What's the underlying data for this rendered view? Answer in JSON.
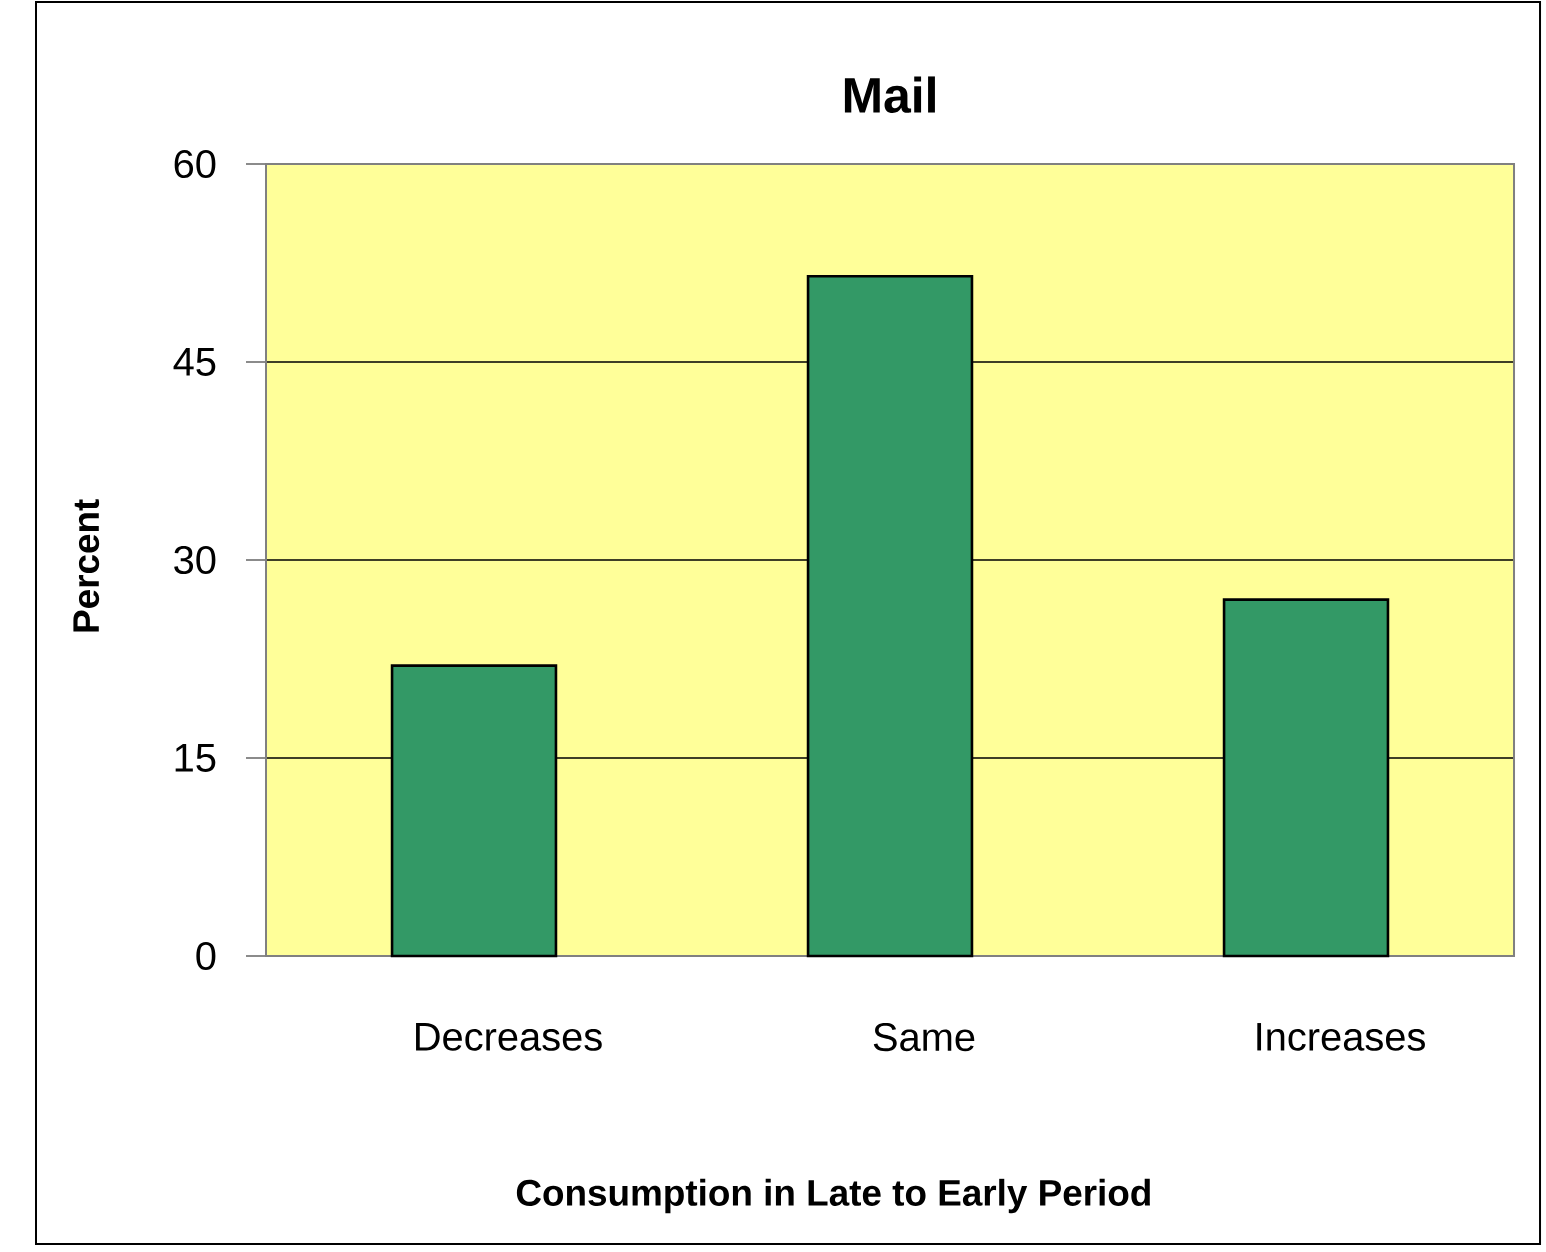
{
  "chart_data": {
    "type": "bar",
    "title": "Mail",
    "xlabel": "Consumption in Late to Early Period",
    "ylabel": "Percent",
    "categories": [
      "Decreases",
      "Same",
      "Increases"
    ],
    "values": [
      22,
      51.5,
      27
    ],
    "color": "#339966",
    "ylim": [
      0,
      60
    ],
    "yticks": [
      0,
      15,
      30,
      45,
      60
    ],
    "grid": "y"
  }
}
